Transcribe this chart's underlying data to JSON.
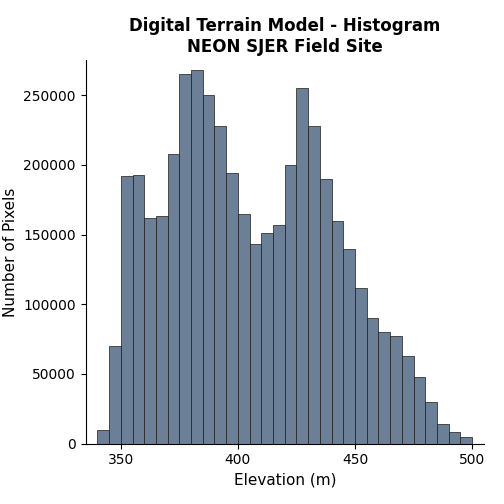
{
  "title_line1": "Digital Terrain Model - Histogram",
  "title_line2": "NEON SJER Field Site",
  "xlabel": "Elevation (m)",
  "ylabel": "Number of Pixels",
  "bar_color": "#6b8096",
  "bar_edge_color": "#1a1a1a",
  "background_color": "#ffffff",
  "xlim": [
    335,
    505
  ],
  "ylim": [
    0,
    275000
  ],
  "yticks": [
    0,
    50000,
    100000,
    150000,
    200000,
    250000
  ],
  "xticks": [
    350,
    400,
    450,
    500
  ],
  "bin_edges": [
    340,
    345,
    350,
    355,
    360,
    365,
    370,
    375,
    380,
    385,
    390,
    395,
    400,
    405,
    410,
    415,
    420,
    425,
    430,
    435,
    440,
    445,
    450,
    455,
    460,
    465,
    470,
    475,
    480,
    485,
    490,
    495,
    500
  ],
  "counts": [
    10000,
    70000,
    192000,
    193000,
    162000,
    163000,
    208000,
    265000,
    268000,
    250000,
    228000,
    194000,
    165000,
    143000,
    151000,
    157000,
    200000,
    255000,
    228000,
    190000,
    160000,
    140000,
    112000,
    90000,
    80000,
    77000,
    63000,
    48000,
    30000,
    14000,
    8000,
    5000
  ]
}
